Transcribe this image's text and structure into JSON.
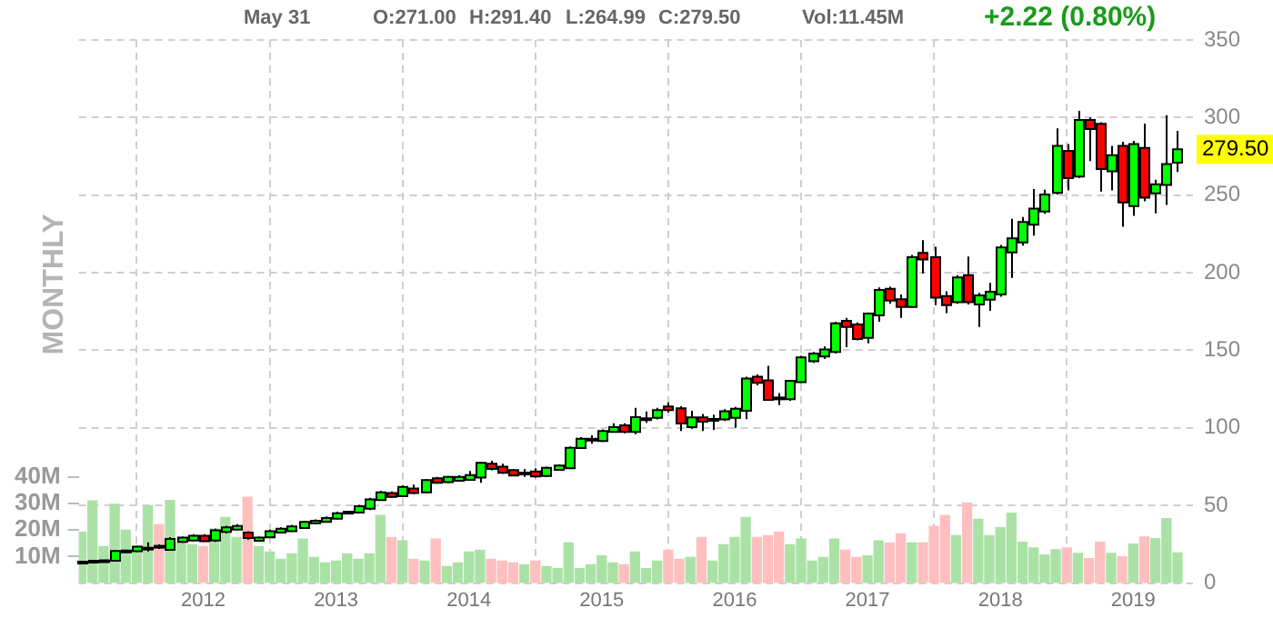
{
  "chart_data": {
    "type": "candlestick",
    "x": [
      "2011-02",
      "2011-03",
      "2011-04",
      "2011-05",
      "2011-06",
      "2011-07",
      "2011-08",
      "2011-09",
      "2011-10",
      "2011-11",
      "2011-12",
      "2012-01",
      "2012-02",
      "2012-03",
      "2012-04",
      "2012-05",
      "2012-06",
      "2012-07",
      "2012-08",
      "2012-09",
      "2012-10",
      "2012-11",
      "2012-12",
      "2013-01",
      "2013-02",
      "2013-03",
      "2013-04",
      "2013-05",
      "2013-06",
      "2013-07",
      "2013-08",
      "2013-09",
      "2013-10",
      "2013-11",
      "2013-12",
      "2014-01",
      "2014-02",
      "2014-03",
      "2014-04",
      "2014-05",
      "2014-06",
      "2014-07",
      "2014-08",
      "2014-09",
      "2014-10",
      "2014-11",
      "2014-12",
      "2015-01",
      "2015-02",
      "2015-03",
      "2015-04",
      "2015-05",
      "2015-06",
      "2015-07",
      "2015-08",
      "2015-09",
      "2015-10",
      "2015-11",
      "2015-12",
      "2016-01",
      "2016-02",
      "2016-03",
      "2016-04",
      "2016-05",
      "2016-06",
      "2016-07",
      "2016-08",
      "2016-09",
      "2016-10",
      "2016-11",
      "2016-12",
      "2017-01",
      "2017-02",
      "2017-03",
      "2017-04",
      "2017-05",
      "2017-06",
      "2017-07",
      "2017-08",
      "2017-09",
      "2017-10",
      "2017-11",
      "2017-12",
      "2018-01",
      "2018-02",
      "2018-03",
      "2018-04",
      "2018-05",
      "2018-06",
      "2018-07",
      "2018-08",
      "2018-09",
      "2018-10",
      "2018-11",
      "2018-12",
      "2019-01",
      "2019-02",
      "2019-03",
      "2019-04",
      "2019-05"
    ],
    "series": [
      {
        "ohlc": [
          [
            13.5,
            14.2,
            13,
            13.8
          ],
          [
            13.8,
            15,
            13.5,
            14.4
          ],
          [
            14.4,
            15,
            14.2,
            14.7
          ],
          [
            14.4,
            21.2,
            14.2,
            20.7
          ],
          [
            20.5,
            21.5,
            20,
            21
          ],
          [
            20.5,
            24,
            20,
            23.5
          ],
          [
            22.5,
            26.2,
            20.4,
            22.8
          ],
          [
            24,
            25,
            22,
            23
          ],
          [
            21.5,
            29.7,
            21,
            28.5
          ],
          [
            26.5,
            30,
            26,
            29.3
          ],
          [
            27.5,
            31.5,
            27,
            30.5
          ],
          [
            30.5,
            31.5,
            26.5,
            27
          ],
          [
            27.5,
            35,
            26.5,
            34
          ],
          [
            33,
            37,
            32,
            36
          ],
          [
            34.5,
            38,
            34,
            36.8
          ],
          [
            32.5,
            33.5,
            28,
            29
          ],
          [
            27.3,
            30,
            27,
            29.3
          ],
          [
            29.5,
            34.5,
            29,
            33.5
          ],
          [
            32.5,
            36,
            32,
            35
          ],
          [
            33.5,
            37.5,
            33,
            36.5
          ],
          [
            35.5,
            40,
            35,
            39.5
          ],
          [
            38.5,
            41,
            38,
            40.2
          ],
          [
            39.5,
            43,
            39,
            42
          ],
          [
            41.5,
            46,
            41,
            45
          ],
          [
            45,
            46.5,
            44.5,
            46
          ],
          [
            45.5,
            50.5,
            45,
            49.5
          ],
          [
            48,
            55,
            47,
            54
          ],
          [
            53.5,
            59.5,
            53,
            58.5
          ],
          [
            58,
            59,
            55,
            55.5
          ],
          [
            56,
            63,
            55.5,
            62
          ],
          [
            61,
            63.5,
            57.5,
            58
          ],
          [
            58.5,
            67,
            58,
            66.4
          ],
          [
            67.5,
            68.5,
            64,
            64.6
          ],
          [
            65,
            69,
            64.5,
            68.4
          ],
          [
            66,
            69.5,
            65.5,
            68.5
          ],
          [
            66.5,
            72.3,
            66,
            69.6
          ],
          [
            68,
            78,
            64.6,
            77.5
          ],
          [
            77,
            78.8,
            72.7,
            73.5
          ],
          [
            75,
            77,
            70.5,
            71
          ],
          [
            72.8,
            73.5,
            69,
            69.3
          ],
          [
            71,
            73.5,
            68.4,
            71.2
          ],
          [
            71.9,
            74,
            68,
            68.8
          ],
          [
            69,
            75,
            68.5,
            74.3
          ],
          [
            73,
            76.5,
            72.5,
            75.8
          ],
          [
            74,
            88,
            73.5,
            87.2
          ],
          [
            87,
            94,
            86.5,
            93
          ],
          [
            92.5,
            95.2,
            89.8,
            93
          ],
          [
            91.5,
            99,
            91,
            98
          ],
          [
            97.5,
            103,
            97,
            100.5
          ],
          [
            101.7,
            103,
            96.5,
            97.5
          ],
          [
            97.5,
            113,
            96,
            107
          ],
          [
            105.8,
            110.6,
            103.3,
            106.2
          ],
          [
            106.5,
            113,
            105.5,
            111.5
          ],
          [
            113.8,
            116.5,
            110,
            111.5
          ],
          [
            112.7,
            114,
            98,
            102.8
          ],
          [
            100.5,
            111,
            99.5,
            106.8
          ],
          [
            106.8,
            109,
            98,
            104
          ],
          [
            105.2,
            108.6,
            98.8,
            105.8
          ],
          [
            105.5,
            112,
            104.5,
            110.7
          ],
          [
            106.5,
            113.5,
            100,
            112.3
          ],
          [
            111,
            133,
            105.6,
            131.8
          ],
          [
            133,
            134.5,
            127.5,
            129.1
          ],
          [
            130.6,
            140,
            117.5,
            118.1
          ],
          [
            119.6,
            122.4,
            114.7,
            119
          ],
          [
            118.5,
            131,
            117.5,
            130.3
          ],
          [
            129.5,
            146.5,
            129,
            145.5
          ],
          [
            143,
            149,
            142,
            147.9
          ],
          [
            146,
            152.5,
            144.5,
            150.6
          ],
          [
            149,
            168.5,
            148,
            167.4
          ],
          [
            169,
            171,
            152,
            165
          ],
          [
            166.7,
            168,
            156.5,
            157.3
          ],
          [
            158,
            174.5,
            154.5,
            173.7
          ],
          [
            172.5,
            190.5,
            168.5,
            189
          ],
          [
            189.7,
            191,
            180,
            182
          ],
          [
            183,
            186,
            171,
            178
          ],
          [
            178,
            211.5,
            177.5,
            210
          ],
          [
            212.8,
            221,
            199.5,
            208.5
          ],
          [
            210,
            216.7,
            179.1,
            184
          ],
          [
            185,
            188,
            174,
            179.2
          ],
          [
            181,
            198.5,
            180,
            197
          ],
          [
            198.4,
            210.4,
            179.5,
            181
          ],
          [
            179.5,
            187,
            165,
            185.4
          ],
          [
            182.6,
            193.5,
            175.5,
            187.8
          ],
          [
            186,
            218,
            184.5,
            216.3
          ],
          [
            213.1,
            234.7,
            196.7,
            222.2
          ],
          [
            219.5,
            236,
            217.5,
            232.7
          ],
          [
            231,
            254,
            224,
            241.3
          ],
          [
            239.5,
            253.5,
            238,
            250.4
          ],
          [
            251.5,
            293,
            250.5,
            281.7
          ],
          [
            278.5,
            283,
            253,
            261
          ],
          [
            262,
            304.3,
            261,
            298.5
          ],
          [
            298.5,
            300,
            272,
            292.6
          ],
          [
            296,
            297,
            252.3,
            266.8
          ],
          [
            265.3,
            281.7,
            253,
            275.8
          ],
          [
            281.7,
            284.4,
            229.6,
            245.3
          ],
          [
            243,
            285,
            236.6,
            282.9
          ],
          [
            280.5,
            296.1,
            246,
            248.4
          ],
          [
            251.2,
            260,
            238.3,
            257
          ],
          [
            256.6,
            301.6,
            243.7,
            270
          ],
          [
            271,
            291.4,
            264.99,
            279.5
          ]
        ],
        "colors": [
          "#00ff00",
          "#00ff00",
          "#00ff00",
          "#00ff00",
          "#00ff00",
          "#00ff00",
          "#00ff00",
          "#ff0000",
          "#00ff00",
          "#00ff00",
          "#00ff00",
          "#ff0000",
          "#00ff00",
          "#00ff00",
          "#00ff00",
          "#ff0000",
          "#00ff00",
          "#00ff00",
          "#00ff00",
          "#00ff00",
          "#00ff00",
          "#00ff00",
          "#00ff00",
          "#00ff00",
          "#00ff00",
          "#00ff00",
          "#00ff00",
          "#00ff00",
          "#ff0000",
          "#00ff00",
          "#ff0000",
          "#00ff00",
          "#ff0000",
          "#00ff00",
          "#00ff00",
          "#00ff00",
          "#00ff00",
          "#ff0000",
          "#ff0000",
          "#ff0000",
          "#00ff00",
          "#ff0000",
          "#00ff00",
          "#00ff00",
          "#00ff00",
          "#00ff00",
          "#00ff00",
          "#00ff00",
          "#00ff00",
          "#ff0000",
          "#00ff00",
          "#00ff00",
          "#00ff00",
          "#ff0000",
          "#ff0000",
          "#00ff00",
          "#ff0000",
          "#00ff00",
          "#00ff00",
          "#00ff00",
          "#00ff00",
          "#ff0000",
          "#ff0000",
          "#ff0000",
          "#00ff00",
          "#00ff00",
          "#00ff00",
          "#00ff00",
          "#00ff00",
          "#ff0000",
          "#ff0000",
          "#00ff00",
          "#00ff00",
          "#ff0000",
          "#ff0000",
          "#00ff00",
          "#ff0000",
          "#ff0000",
          "#ff0000",
          "#00ff00",
          "#ff0000",
          "#00ff00",
          "#00ff00",
          "#00ff00",
          "#00ff00",
          "#00ff00",
          "#00ff00",
          "#00ff00",
          "#00ff00",
          "#ff0000",
          "#00ff00",
          "#ff0000",
          "#ff0000",
          "#00ff00",
          "#ff0000",
          "#00ff00",
          "#ff0000",
          "#00ff00",
          "#00ff00",
          "#00ff00"
        ]
      },
      {
        "type": "bar",
        "axis": "y2",
        "values": [
          19.3,
          31,
          13.8,
          29.7,
          20,
          12.4,
          29.2,
          22,
          31.2,
          15.4,
          14.5,
          13.8,
          20.5,
          24.8,
          17.2,
          32.4,
          13.8,
          11.7,
          9,
          11,
          16.6,
          9.7,
          7.6,
          8.3,
          11,
          9,
          11,
          25.5,
          17.2,
          15.9,
          9,
          8.3,
          16.6,
          6.2,
          7.6,
          11.7,
          12.4,
          9,
          8.3,
          7.6,
          6.9,
          8.3,
          6.2,
          5.5,
          15.2,
          5.5,
          6.9,
          10.3,
          7.6,
          6.9,
          11.7,
          5.5,
          8.3,
          12.4,
          9,
          9.7,
          17.2,
          8.3,
          14.5,
          17.2,
          24.8,
          17.2,
          17.9,
          19.3,
          14.5,
          16.6,
          8.3,
          9.7,
          16.6,
          12.4,
          9.7,
          10.3,
          15.9,
          15.2,
          18.6,
          15.2,
          15.2,
          21.4,
          25.5,
          17.9,
          30.2,
          24.1,
          17.9,
          20.9,
          26.4,
          15.4,
          13.3,
          10.6,
          12.6,
          13.3,
          11.2,
          9.2,
          15.4,
          11.2,
          9.9,
          14.7,
          17.4,
          16.8,
          24.3,
          11.4
        ],
        "colors": [
          "#aae2a6",
          "#aae2a6",
          "#aae2a6",
          "#aae2a6",
          "#aae2a6",
          "#aae2a6",
          "#aae2a6",
          "#ffbfbf",
          "#aae2a6",
          "#aae2a6",
          "#aae2a6",
          "#ffbfbf",
          "#aae2a6",
          "#aae2a6",
          "#aae2a6",
          "#ffbfbf",
          "#aae2a6",
          "#aae2a6",
          "#aae2a6",
          "#aae2a6",
          "#aae2a6",
          "#aae2a6",
          "#aae2a6",
          "#aae2a6",
          "#aae2a6",
          "#aae2a6",
          "#aae2a6",
          "#aae2a6",
          "#ffbfbf",
          "#aae2a6",
          "#ffbfbf",
          "#aae2a6",
          "#ffbfbf",
          "#aae2a6",
          "#aae2a6",
          "#aae2a6",
          "#aae2a6",
          "#ffbfbf",
          "#ffbfbf",
          "#ffbfbf",
          "#aae2a6",
          "#ffbfbf",
          "#aae2a6",
          "#aae2a6",
          "#aae2a6",
          "#aae2a6",
          "#aae2a6",
          "#aae2a6",
          "#aae2a6",
          "#ffbfbf",
          "#aae2a6",
          "#aae2a6",
          "#aae2a6",
          "#ffbfbf",
          "#ffbfbf",
          "#aae2a6",
          "#ffbfbf",
          "#aae2a6",
          "#aae2a6",
          "#aae2a6",
          "#aae2a6",
          "#ffbfbf",
          "#ffbfbf",
          "#ffbfbf",
          "#aae2a6",
          "#aae2a6",
          "#aae2a6",
          "#aae2a6",
          "#aae2a6",
          "#ffbfbf",
          "#ffbfbf",
          "#aae2a6",
          "#aae2a6",
          "#ffbfbf",
          "#ffbfbf",
          "#aae2a6",
          "#ffbfbf",
          "#ffbfbf",
          "#ffbfbf",
          "#aae2a6",
          "#ffbfbf",
          "#aae2a6",
          "#aae2a6",
          "#aae2a6",
          "#aae2a6",
          "#aae2a6",
          "#aae2a6",
          "#aae2a6",
          "#aae2a6",
          "#ffbfbf",
          "#aae2a6",
          "#ffbfbf",
          "#ffbfbf",
          "#aae2a6",
          "#ffbfbf",
          "#aae2a6",
          "#ffbfbf",
          "#aae2a6",
          "#aae2a6",
          "#aae2a6"
        ]
      }
    ],
    "xlim": [
      "2011-01-24",
      "2019-06-13"
    ],
    "xticks": [
      "2012",
      "2013",
      "2014",
      "2015",
      "2016",
      "2017",
      "2018",
      "2019"
    ],
    "ylim": [
      0,
      350
    ],
    "yticks": [
      0,
      50,
      100,
      150,
      200,
      250,
      300,
      350
    ],
    "y2lim": [
      0,
      205
    ],
    "y2ticks": [
      {
        "value": 10,
        "label": "10M"
      },
      {
        "value": 20,
        "label": "20M"
      },
      {
        "value": 30,
        "label": "30M"
      },
      {
        "value": 40,
        "label": "40M"
      }
    ],
    "grid": true,
    "annotations": [
      "May 31",
      "O:271.00",
      "H:291.40",
      "L:264.99",
      "C:279.50",
      "Vol:11.45M",
      "+2.22 (0.80%)",
      "MONTHLY",
      "279.50"
    ]
  }
}
